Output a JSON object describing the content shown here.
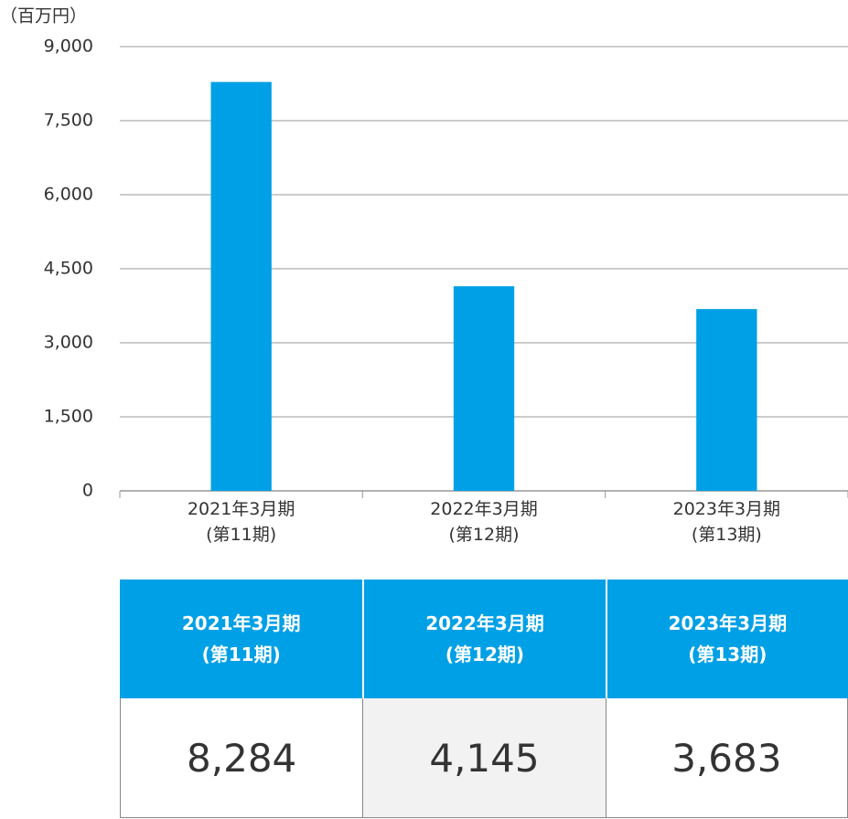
{
  "chart_data": {
    "type": "bar",
    "y_label": "（百万円）",
    "categories": [
      "2021年3月期\n(第11期)",
      "2022年3月期\n(第12期)",
      "2023年3月期\n(第13期)"
    ],
    "values": [
      8284,
      4145,
      3683
    ],
    "value_labels": [
      "8,284",
      "4,145",
      "3,683"
    ],
    "color": "#00a0e6",
    "ylim": [
      0,
      9000
    ],
    "yticks": [
      0,
      {
        "value": 1500,
        "label": "1,500"
      },
      {
        "value": 3000,
        "label": "3,000"
      },
      {
        "value": 4500,
        "label": "4,500"
      },
      {
        "value": 6000,
        "label": "6,000"
      },
      {
        "value": 7500,
        "label": "7,500"
      },
      {
        "value": 9000,
        "label": "9,000"
      }
    ],
    "grid": true
  }
}
